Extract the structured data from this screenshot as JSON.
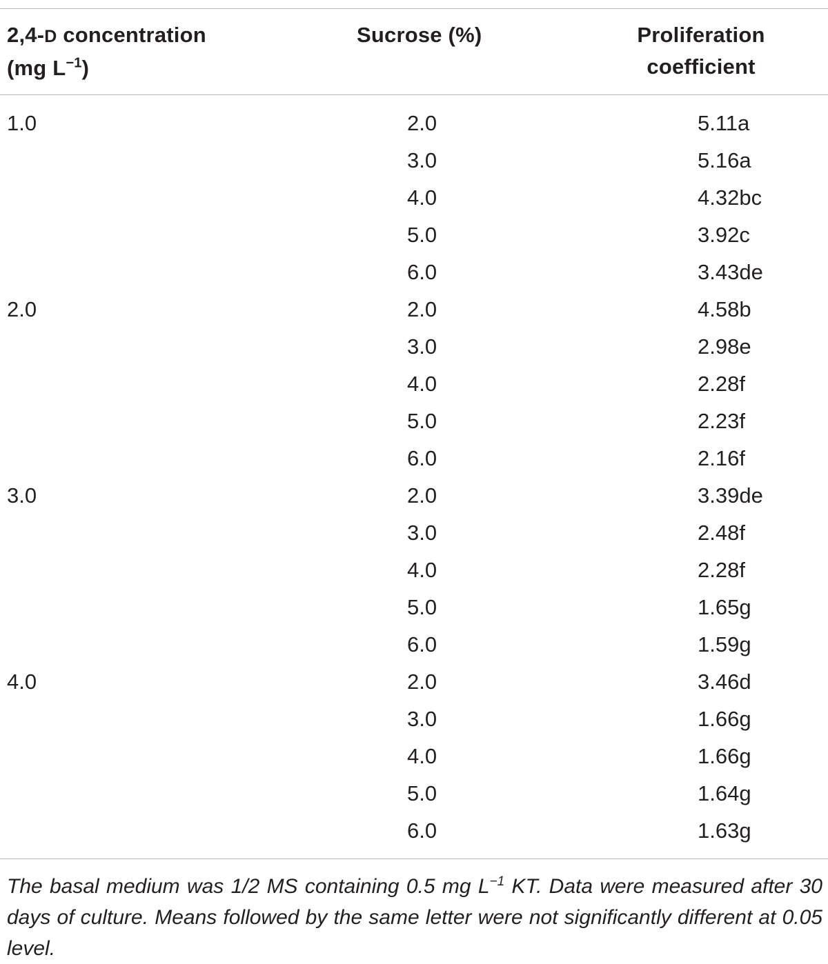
{
  "headers": {
    "col1_prefix": "2,4-",
    "col1_smallcaps": "D",
    "col1_suffix": " concentration",
    "col1_line2_prefix": "(mg L",
    "col1_line2_sup": "−1",
    "col1_line2_suffix": ")",
    "col2": "Sucrose (%)",
    "col3_line1": "Proliferation",
    "col3_line2": "coefficient"
  },
  "rows": [
    {
      "conc": "1.0",
      "sucrose": "2.0",
      "coef": "5.11a"
    },
    {
      "conc": "",
      "sucrose": "3.0",
      "coef": "5.16a"
    },
    {
      "conc": "",
      "sucrose": "4.0",
      "coef": "4.32bc"
    },
    {
      "conc": "",
      "sucrose": "5.0",
      "coef": "3.92c"
    },
    {
      "conc": "",
      "sucrose": "6.0",
      "coef": "3.43de"
    },
    {
      "conc": "2.0",
      "sucrose": "2.0",
      "coef": "4.58b"
    },
    {
      "conc": "",
      "sucrose": "3.0",
      "coef": "2.98e"
    },
    {
      "conc": "",
      "sucrose": "4.0",
      "coef": "2.28f"
    },
    {
      "conc": "",
      "sucrose": "5.0",
      "coef": "2.23f"
    },
    {
      "conc": "",
      "sucrose": "6.0",
      "coef": "2.16f"
    },
    {
      "conc": "3.0",
      "sucrose": "2.0",
      "coef": "3.39de"
    },
    {
      "conc": "",
      "sucrose": "3.0",
      "coef": "2.48f"
    },
    {
      "conc": "",
      "sucrose": "4.0",
      "coef": "2.28f"
    },
    {
      "conc": "",
      "sucrose": "5.0",
      "coef": "1.65g"
    },
    {
      "conc": "",
      "sucrose": "6.0",
      "coef": "1.59g"
    },
    {
      "conc": "4.0",
      "sucrose": "2.0",
      "coef": "3.46d"
    },
    {
      "conc": "",
      "sucrose": "3.0",
      "coef": "1.66g"
    },
    {
      "conc": "",
      "sucrose": "4.0",
      "coef": "1.66g"
    },
    {
      "conc": "",
      "sucrose": "5.0",
      "coef": "1.64g"
    },
    {
      "conc": "",
      "sucrose": "6.0",
      "coef": "1.63g"
    }
  ],
  "footnote": {
    "part1": "The basal medium was 1/2 MS containing 0.5 mg L",
    "sup": "−1",
    "part2": " KT. Data were measured after 30 days of culture. Means followed by the same letter were not significantly different at 0.05 level."
  }
}
